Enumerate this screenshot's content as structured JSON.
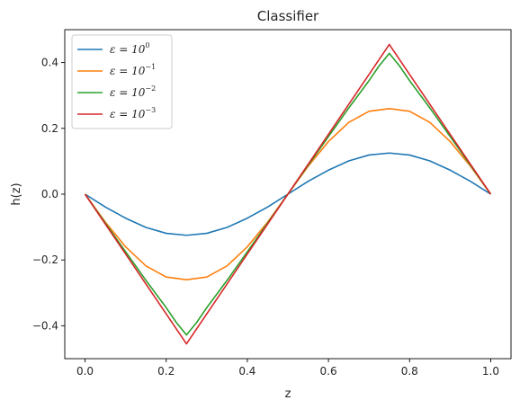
{
  "chart_data": {
    "type": "line",
    "title": "Classifier",
    "xlabel": "z",
    "ylabel": "h(z)",
    "xlim": [
      -0.05,
      1.05
    ],
    "ylim": [
      -0.5,
      0.5
    ],
    "xticks": [
      0.0,
      0.2,
      0.4,
      0.6,
      0.8,
      1.0
    ],
    "xtick_labels": [
      "0.0",
      "0.2",
      "0.4",
      "0.6",
      "0.8",
      "1.0"
    ],
    "yticks": [
      -0.4,
      -0.2,
      0.0,
      0.2,
      0.4
    ],
    "ytick_labels": [
      "−0.4",
      "−0.2",
      "0.0",
      "0.2",
      "0.4"
    ],
    "grid": false,
    "legend_position": "top-left",
    "series": [
      {
        "name_base": "ε = 10",
        "name_exp": "0",
        "color": "#1f77b4",
        "x": [
          0.0,
          0.05,
          0.1,
          0.15,
          0.2,
          0.25,
          0.3,
          0.35,
          0.4,
          0.45,
          0.5,
          0.55,
          0.6,
          0.65,
          0.7,
          0.75,
          0.8,
          0.85,
          0.9,
          0.95,
          1.0
        ],
        "y": [
          0.0,
          -0.039,
          -0.073,
          -0.101,
          -0.119,
          -0.125,
          -0.119,
          -0.101,
          -0.073,
          -0.039,
          0.0,
          0.039,
          0.073,
          0.101,
          0.119,
          0.125,
          0.119,
          0.101,
          0.073,
          0.039,
          0.0
        ]
      },
      {
        "name_base": "ε = 10",
        "name_exp": "−1",
        "color": "#ff7f0e",
        "x": [
          0.0,
          0.05,
          0.1,
          0.15,
          0.2,
          0.25,
          0.3,
          0.35,
          0.4,
          0.45,
          0.5,
          0.55,
          0.6,
          0.65,
          0.7,
          0.75,
          0.8,
          0.85,
          0.9,
          0.95,
          1.0
        ],
        "y": [
          0.0,
          -0.085,
          -0.16,
          -0.218,
          -0.252,
          -0.26,
          -0.252,
          -0.218,
          -0.16,
          -0.085,
          0.0,
          0.085,
          0.16,
          0.218,
          0.252,
          0.26,
          0.252,
          0.218,
          0.16,
          0.085,
          0.0
        ]
      },
      {
        "name_base": "ε = 10",
        "name_exp": "−2",
        "color": "#2ca02c",
        "x": [
          0.0,
          0.05,
          0.1,
          0.15,
          0.2,
          0.225,
          0.25,
          0.275,
          0.3,
          0.35,
          0.4,
          0.45,
          0.5,
          0.55,
          0.6,
          0.65,
          0.7,
          0.725,
          0.75,
          0.775,
          0.8,
          0.85,
          0.9,
          0.95,
          1.0
        ],
        "y": [
          0.0,
          -0.088,
          -0.175,
          -0.262,
          -0.345,
          -0.39,
          -0.428,
          -0.39,
          -0.345,
          -0.262,
          -0.175,
          -0.088,
          0.0,
          0.088,
          0.175,
          0.262,
          0.345,
          0.39,
          0.428,
          0.39,
          0.345,
          0.262,
          0.175,
          0.088,
          0.0
        ]
      },
      {
        "name_base": "ε = 10",
        "name_exp": "−3",
        "color": "#d62728",
        "x": [
          0.0,
          0.05,
          0.1,
          0.15,
          0.2,
          0.25,
          0.3,
          0.35,
          0.4,
          0.45,
          0.5,
          0.55,
          0.6,
          0.65,
          0.7,
          0.75,
          0.8,
          0.85,
          0.9,
          0.95,
          1.0
        ],
        "y": [
          0.0,
          -0.091,
          -0.182,
          -0.273,
          -0.364,
          -0.455,
          -0.364,
          -0.273,
          -0.182,
          -0.091,
          0.0,
          0.091,
          0.182,
          0.273,
          0.364,
          0.455,
          0.364,
          0.273,
          0.182,
          0.091,
          0.0
        ]
      }
    ]
  }
}
